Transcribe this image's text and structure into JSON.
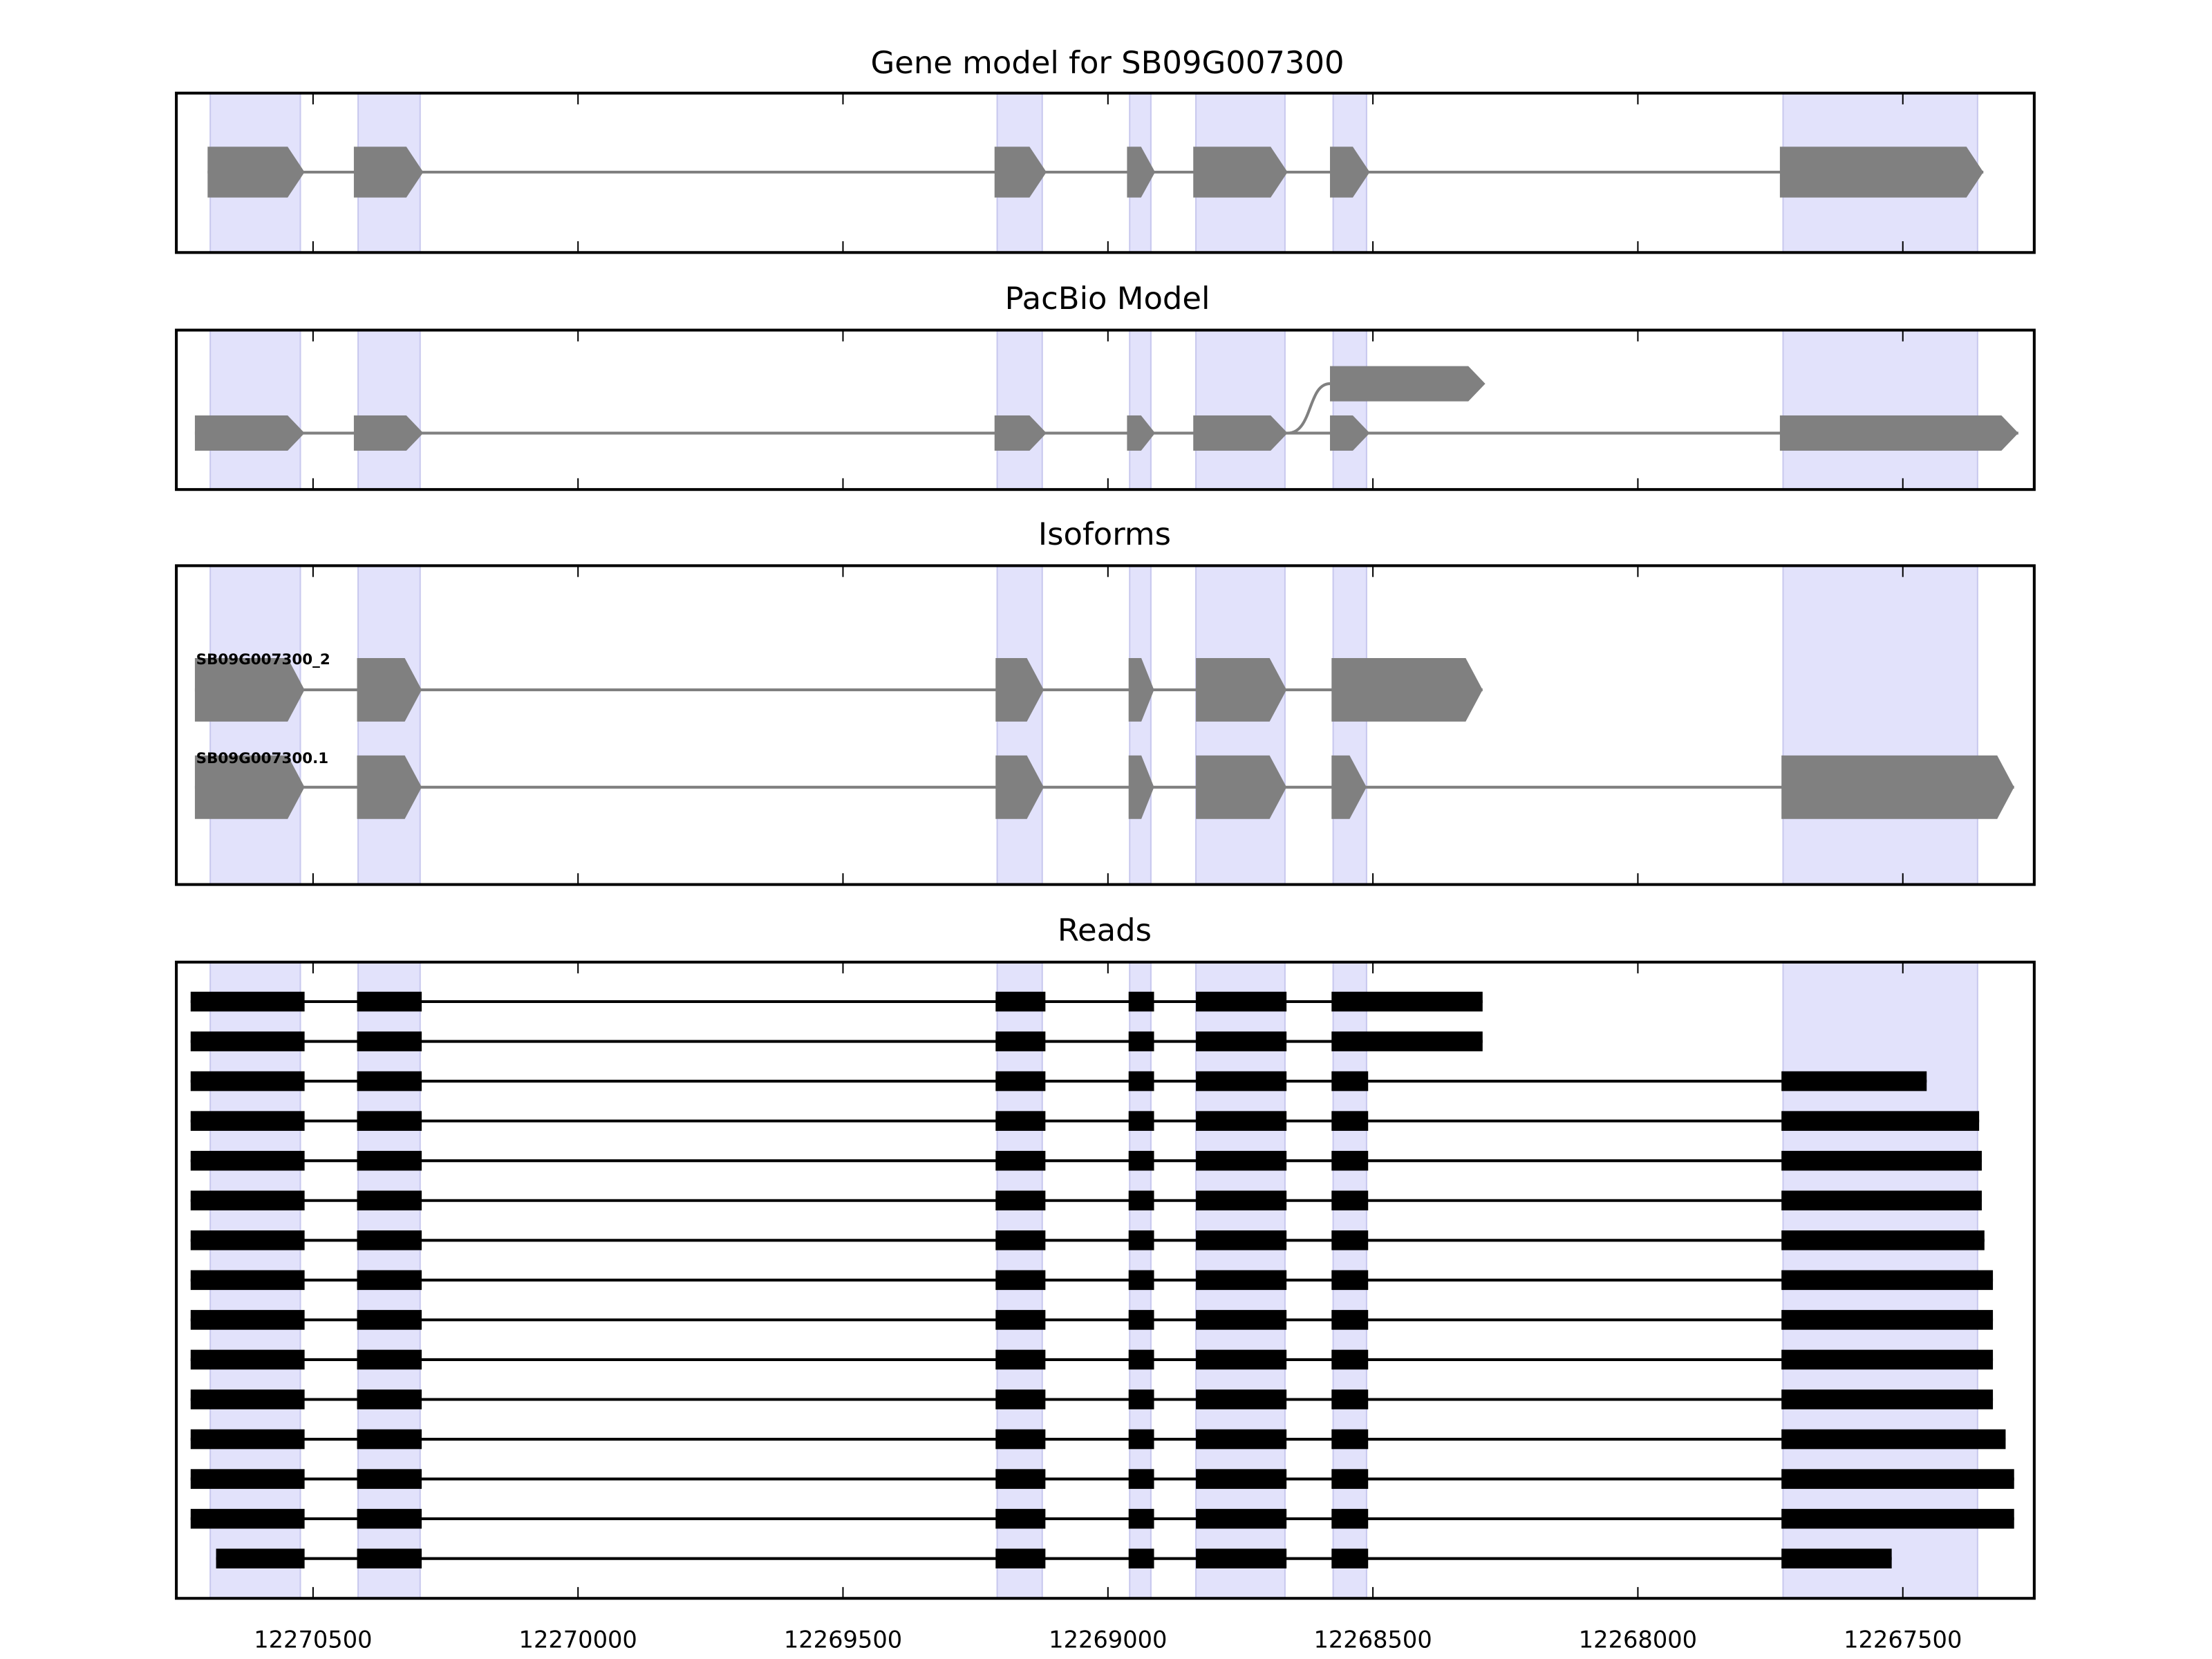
{
  "chart_data": {
    "type": "gene-structure",
    "xlim": [
      12270758,
      12267252
    ],
    "x_reversed": true,
    "xticks": [
      12270500,
      12270000,
      12269500,
      12269000,
      12268500,
      12268000,
      12267500
    ],
    "xtick_labels": [
      "12270500",
      "12270000",
      "12269500",
      "12269000",
      "12268500",
      "12268000",
      "12267500"
    ],
    "colors": {
      "shade": "#e2e2fb",
      "shade_edge": "#c8c8ee",
      "model": "#808080",
      "read": "#000000",
      "frame": "#000000"
    },
    "shaded_exons": [
      [
        12270694,
        12270524
      ],
      [
        12270415,
        12270298
      ],
      [
        12269209,
        12269124
      ],
      [
        12268959,
        12268919
      ],
      [
        12268834,
        12268666
      ],
      [
        12268575,
        12268512
      ],
      [
        12267726,
        12267359
      ]
    ],
    "panels": {
      "gene_model": {
        "title": "Gene model for SB09G007300",
        "exons": [
          [
            12270699,
            12270516
          ],
          [
            12270423,
            12270292
          ],
          [
            12269214,
            12269116
          ],
          [
            12268964,
            12268911
          ],
          [
            12268839,
            12268661
          ],
          [
            12268581,
            12268506
          ],
          [
            12267732,
            12267348
          ]
        ]
      },
      "pacbio": {
        "title": "PacBio Model",
        "main_exons": [
          [
            12270723,
            12270516
          ],
          [
            12270423,
            12270292
          ],
          [
            12269214,
            12269116
          ],
          [
            12268964,
            12268911
          ],
          [
            12268839,
            12268661
          ],
          [
            12268581,
            12268506
          ],
          [
            12267732,
            12267282
          ]
        ],
        "alt_exon": [
          12268581,
          12268288
        ]
      },
      "isoforms": {
        "title": "Isoforms",
        "items": [
          {
            "name": "SB09G007300_2",
            "exons": [
              [
                12270723,
                12270516
              ],
              [
                12270417,
                12270295
              ],
              [
                12269212,
                12269121
              ],
              [
                12268961,
                12268913
              ],
              [
                12268834,
                12268663
              ],
              [
                12268578,
                12268293
              ]
            ]
          },
          {
            "name": "SB09G007300.1",
            "exons": [
              [
                12270723,
                12270516
              ],
              [
                12270417,
                12270295
              ],
              [
                12269212,
                12269121
              ],
              [
                12268961,
                12268913
              ],
              [
                12268834,
                12268663
              ],
              [
                12268578,
                12268512
              ],
              [
                12267729,
                12267290
              ]
            ]
          }
        ]
      },
      "reads": {
        "title": "Reads",
        "common_exons": [
          [
            12270417,
            12270295
          ],
          [
            12269212,
            12269118
          ],
          [
            12268961,
            12268913
          ],
          [
            12268834,
            12268663
          ]
        ],
        "items": [
          {
            "start": 12270731,
            "last": [
              12268578,
              12268293
            ]
          },
          {
            "start": 12270731,
            "last": [
              12268578,
              12268293
            ]
          },
          {
            "start": 12270731,
            "last": [
              12268578,
              12268509
            ],
            "end": 12267455
          },
          {
            "start": 12270731,
            "last": [
              12268578,
              12268509
            ],
            "end": 12267356
          },
          {
            "start": 12270731,
            "last": [
              12268578,
              12268509
            ],
            "end": 12267351
          },
          {
            "start": 12270731,
            "last": [
              12268578,
              12268509
            ],
            "end": 12267351
          },
          {
            "start": 12270731,
            "last": [
              12268578,
              12268509
            ],
            "end": 12267346
          },
          {
            "start": 12270731,
            "last": [
              12268578,
              12268509
            ],
            "end": 12267330
          },
          {
            "start": 12270731,
            "last": [
              12268578,
              12268509
            ],
            "end": 12267330
          },
          {
            "start": 12270731,
            "last": [
              12268578,
              12268509
            ],
            "end": 12267330
          },
          {
            "start": 12270731,
            "last": [
              12268578,
              12268509
            ],
            "end": 12267330
          },
          {
            "start": 12270731,
            "last": [
              12268578,
              12268509
            ],
            "end": 12267306
          },
          {
            "start": 12270731,
            "last": [
              12268578,
              12268509
            ],
            "end": 12267290
          },
          {
            "start": 12270731,
            "last": [
              12268578,
              12268509
            ],
            "end": 12267290
          },
          {
            "start": 12270683,
            "last": [
              12268578,
              12268509
            ],
            "end": 12267521
          }
        ]
      }
    }
  }
}
